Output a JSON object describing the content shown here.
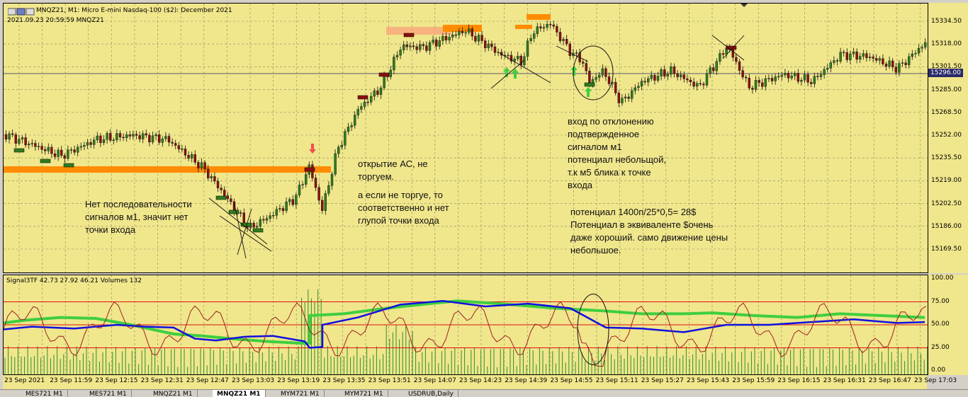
{
  "header": {
    "title": "MNQZ21, M1:  Micro E-mini Nasdaq-100 ($2): December 2021",
    "subtitle": "2021.09.23 20:59:59 MNQZ21"
  },
  "price_axis": {
    "ticks": [
      "15334.50",
      "15318.00",
      "15301.50",
      "15285.00",
      "15268.50",
      "15252.00",
      "15235.50",
      "15219.00",
      "15202.50",
      "15186.00",
      "15169.50"
    ],
    "current_price": "15296.00"
  },
  "indicator": {
    "label": "Signal3TF 42.73 27.92 46.21 Volumes 132",
    "ticks": [
      "100.00",
      "75.00",
      "50.00",
      "25.00",
      "0.00"
    ]
  },
  "time_axis": {
    "labels": [
      "23 Sep 2021",
      "23 Sep 11:59",
      "23 Sep 12:15",
      "23 Sep 12:31",
      "23 Sep 12:47",
      "23 Sep 13:03",
      "23 Sep 13:19",
      "23 Sep 13:35",
      "23 Sep 13:51",
      "23 Sep 14:07",
      "23 Sep 14:23",
      "23 Sep 14:39",
      "23 Sep 14:55",
      "23 Sep 15:11",
      "23 Sep 15:27",
      "23 Sep 15:43",
      "23 Sep 15:59",
      "23 Sep 16:15",
      "23 Sep 16:31",
      "23 Sep 16:47",
      "23 Sep 17:03"
    ]
  },
  "annotations": {
    "no_entry": "Нет последовательности\nсигналов м1, значит нет\nточки входа",
    "open_ac_1": "открытие АС, не\nторгуем.",
    "open_ac_2": "а если не торгуе, то\nсоответственно и нет\nглупой точки входа",
    "entry": "вход по отклонению\nподтвержденное\nсигналом м1\nпотенциал небольщой,\nт.к м5 блика к точке\nвхода",
    "potential": "потенциал 1400п/25*0,5= 28$\nПотенциал в эквиваленте $очень\nдаже хороший. само движение цены\nнебольшое."
  },
  "tabs": [
    "MES721 M1",
    "MES721 M1",
    "MNQZ21 M1",
    "MNQZ21 M1",
    "MYM721 M1",
    "MYM721 M1",
    "USDRUB,Daily"
  ],
  "active_tab": 3,
  "colors": {
    "background": "#f0e68c",
    "grid": "#8a8a5c",
    "candle_up": "#2e7d1e",
    "candle_down": "#8b1010",
    "level_orange": "#ff8c00",
    "signal_green": "#3ecf3e",
    "signal_blue": "#1010e0",
    "signal_red": "#a02020",
    "level_line": "#e01010",
    "volume": "#2f8f2f"
  }
}
